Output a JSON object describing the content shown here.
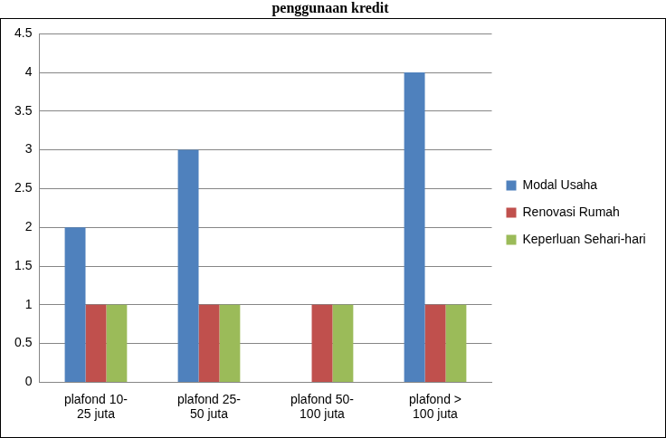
{
  "chart_data": {
    "type": "bar",
    "title": "penggunaan kredit",
    "categories": [
      [
        "plafond 10-",
        "25 juta"
      ],
      [
        "plafond 25-",
        "50 juta"
      ],
      [
        "plafond 50-",
        "100 juta"
      ],
      [
        "plafond >",
        "100 juta"
      ]
    ],
    "series": [
      {
        "name": "Modal Usaha",
        "color": "#4f81bd",
        "values": [
          2,
          3,
          0,
          4
        ]
      },
      {
        "name": "Renovasi Rumah",
        "color": "#c0504d",
        "values": [
          1,
          1,
          1,
          1
        ]
      },
      {
        "name": "Keperluan Sehari-hari",
        "color": "#9bbb59",
        "values": [
          1,
          1,
          1,
          1
        ]
      }
    ],
    "ylim": [
      0,
      4.5
    ],
    "yticks": [
      0,
      0.5,
      1,
      1.5,
      2,
      2.5,
      3,
      3.5,
      4,
      4.5
    ],
    "grid": true,
    "legend": "right"
  }
}
